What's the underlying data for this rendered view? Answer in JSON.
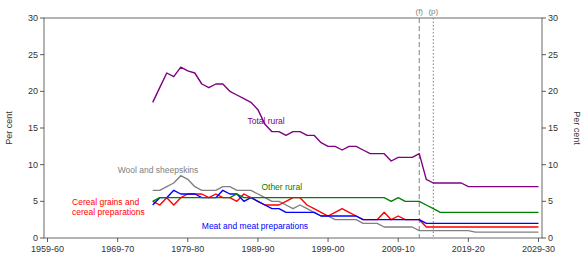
{
  "chart_data": {
    "type": "line",
    "ylabel": "Per cent",
    "y2label": "Per cent",
    "grid": false,
    "xlim": [
      1959,
      2030
    ],
    "xticks": [
      {
        "value": 1959.5,
        "label": "1959-60"
      },
      {
        "value": 1969.5,
        "label": "1969-70"
      },
      {
        "value": 1979.5,
        "label": "1979-80"
      },
      {
        "value": 1989.5,
        "label": "1989-90"
      },
      {
        "value": 1999.5,
        "label": "1999-00"
      },
      {
        "value": 2009.5,
        "label": "2009-10"
      },
      {
        "value": 2019.5,
        "label": "2019-20"
      },
      {
        "value": 2029.5,
        "label": "2029-30"
      }
    ],
    "ylim": [
      0,
      30
    ],
    "yticks": [
      0,
      5,
      10,
      15,
      20,
      25,
      30
    ],
    "y2lim": [
      0,
      30
    ],
    "y2ticks": [
      0,
      5,
      10,
      15,
      20,
      25,
      30
    ],
    "annotations": [
      {
        "x": 2012.5,
        "text": "(f)",
        "line_style": "dashed",
        "color": "#808080"
      },
      {
        "x": 2014.5,
        "text": "(p)",
        "line_style": "dotted",
        "color": "#808080"
      }
    ],
    "x": [
      1974.5,
      1975.5,
      1976.5,
      1977.5,
      1978.5,
      1979.5,
      1980.5,
      1981.5,
      1982.5,
      1983.5,
      1984.5,
      1985.5,
      1986.5,
      1987.5,
      1988.5,
      1989.5,
      1990.5,
      1991.5,
      1992.5,
      1993.5,
      1994.5,
      1995.5,
      1996.5,
      1997.5,
      1998.5,
      1999.5,
      2000.5,
      2001.5,
      2002.5,
      2003.5,
      2004.5,
      2005.5,
      2006.5,
      2007.5,
      2008.5,
      2009.5,
      2010.5,
      2011.5,
      2012.5,
      2013.5,
      2014.5,
      2015.5,
      2016.5,
      2017.5,
      2018.5,
      2019.5,
      2020.5,
      2021.5,
      2022.5,
      2023.5,
      2024.5,
      2025.5,
      2026.5,
      2027.5,
      2028.5,
      2029.5
    ],
    "series": [
      {
        "name": "Total rural",
        "color": "#800080",
        "values": [
          18.5,
          20.5,
          22.5,
          22.0,
          23.3,
          22.8,
          22.5,
          21.0,
          20.5,
          21.0,
          21.0,
          20.0,
          19.5,
          19.0,
          18.5,
          17.5,
          15.5,
          14.5,
          14.5,
          14.0,
          14.5,
          14.5,
          14.0,
          14.0,
          13.0,
          12.5,
          12.5,
          12.0,
          12.5,
          12.5,
          12.0,
          11.5,
          11.5,
          11.5,
          10.5,
          11.0,
          11.0,
          11.0,
          11.5,
          8.0,
          7.5,
          7.5,
          7.5,
          7.5,
          7.5,
          7.0,
          7.0,
          7.0,
          7.0,
          7.0,
          7.0,
          7.0,
          7.0,
          7.0,
          7.0,
          7.0
        ]
      },
      {
        "name": "Wool and sheepskins",
        "color": "#808080",
        "values": [
          6.5,
          6.5,
          7.0,
          7.5,
          8.5,
          8.0,
          7.0,
          6.5,
          6.5,
          6.5,
          7.0,
          7.0,
          6.5,
          6.5,
          6.5,
          6.0,
          5.5,
          5.0,
          5.0,
          4.5,
          4.0,
          4.5,
          4.0,
          3.5,
          3.0,
          3.0,
          2.5,
          2.5,
          2.5,
          2.5,
          2.0,
          2.0,
          2.0,
          1.5,
          1.5,
          1.5,
          1.5,
          1.5,
          1.0,
          1.0,
          1.0,
          1.0,
          1.0,
          1.0,
          1.0,
          1.0,
          0.8,
          0.8,
          0.8,
          0.8,
          0.8,
          0.8,
          0.8,
          0.8,
          0.8,
          0.8
        ]
      },
      {
        "name": "Cereal grains and\ncereal preparations",
        "color": "#ff0000",
        "values": [
          5.0,
          4.5,
          5.5,
          4.5,
          5.5,
          6.0,
          6.0,
          6.0,
          5.5,
          6.0,
          5.5,
          5.5,
          5.0,
          6.0,
          5.5,
          5.0,
          4.5,
          4.5,
          4.5,
          5.0,
          5.5,
          5.5,
          4.5,
          4.0,
          3.5,
          3.0,
          3.5,
          4.0,
          3.5,
          3.0,
          2.5,
          2.5,
          2.5,
          3.5,
          2.5,
          3.0,
          2.5,
          2.5,
          2.5,
          1.5,
          1.5,
          1.5,
          1.5,
          1.5,
          1.5,
          1.5,
          1.5,
          1.5,
          1.5,
          1.5,
          1.5,
          1.5,
          1.5,
          1.5,
          1.5,
          1.5
        ]
      },
      {
        "name": "Meat and meat preparations",
        "color": "#0000ff",
        "values": [
          4.5,
          5.5,
          5.5,
          6.5,
          6.0,
          6.0,
          6.0,
          5.5,
          5.5,
          5.5,
          6.5,
          6.0,
          6.0,
          5.0,
          5.5,
          5.0,
          4.5,
          4.0,
          4.0,
          3.5,
          3.5,
          3.5,
          3.5,
          3.5,
          3.0,
          3.0,
          3.0,
          3.0,
          3.0,
          3.0,
          2.5,
          2.5,
          2.5,
          2.5,
          2.5,
          2.5,
          2.5,
          2.5,
          2.5,
          2.0,
          2.0,
          2.0,
          2.0,
          2.0,
          2.0,
          2.0,
          2.0,
          2.0,
          2.0,
          2.0,
          2.0,
          2.0,
          2.0,
          2.0,
          2.0,
          2.0
        ]
      },
      {
        "name": "Other rural",
        "color": "#008000",
        "values": [
          5.0,
          5.5,
          5.5,
          5.5,
          5.5,
          5.5,
          5.5,
          5.5,
          5.5,
          5.5,
          5.5,
          5.5,
          6.0,
          5.5,
          5.5,
          5.5,
          5.5,
          5.5,
          5.5,
          5.5,
          5.5,
          5.5,
          5.5,
          5.5,
          5.5,
          5.5,
          5.5,
          5.5,
          5.5,
          5.5,
          5.5,
          5.5,
          5.5,
          5.5,
          5.0,
          5.5,
          5.0,
          5.0,
          5.0,
          4.5,
          4.0,
          3.5,
          3.5,
          3.5,
          3.5,
          3.5,
          3.5,
          3.5,
          3.5,
          3.5,
          3.5,
          3.5,
          3.5,
          3.5,
          3.5,
          3.5
        ]
      }
    ]
  }
}
